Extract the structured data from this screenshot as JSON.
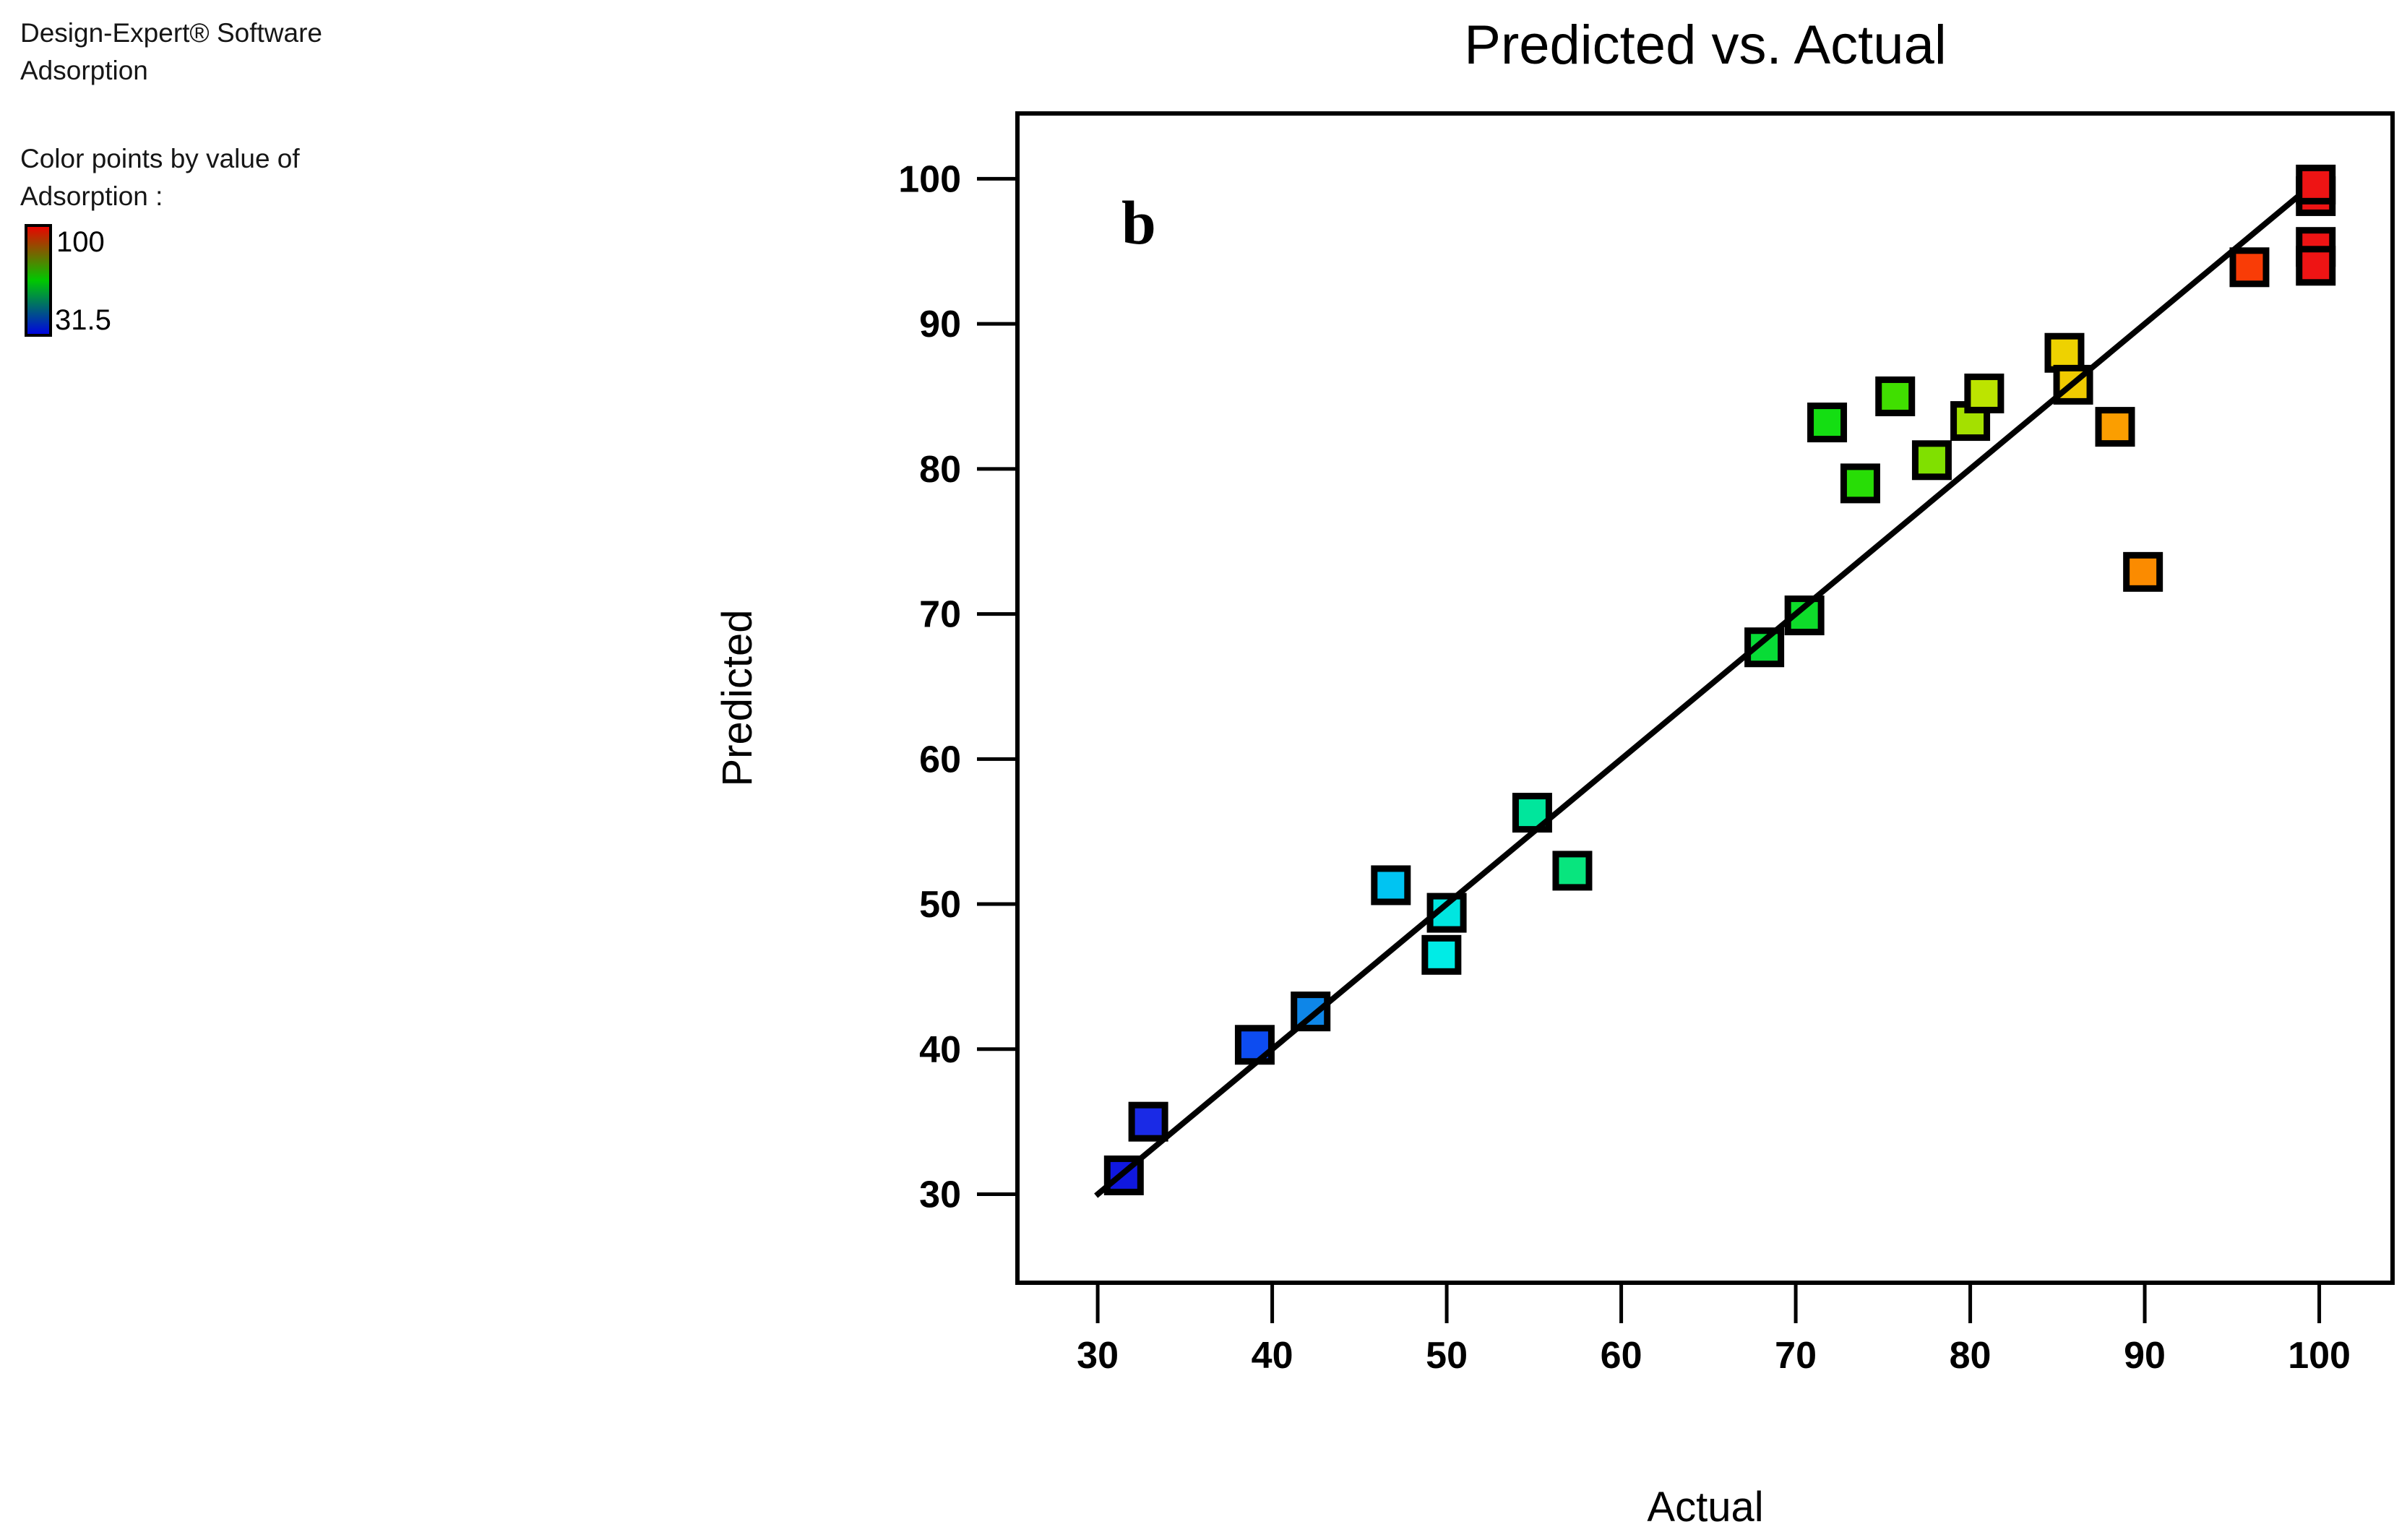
{
  "info_panel": {
    "software_line": "Design-Expert® Software",
    "response_name": "Adsorption",
    "color_note_line1": "Color points by value of",
    "color_note_line2": "Adsorption :",
    "colorbar": {
      "max_label": "100",
      "min_label": "31.5",
      "gradient_top": "#ee0000",
      "gradient_mid": "#00c800",
      "gradient_bottom": "#0000e6",
      "max_label_color": "#fa0000",
      "min_label_color": "#2424fa"
    }
  },
  "chart_data": {
    "type": "scatter",
    "title": "Predicted vs. Actual",
    "panel_label": "b",
    "xlabel": "Actual",
    "ylabel": "Predicted",
    "xlim": [
      25.4,
      104.2
    ],
    "ylim": [
      23.9,
      104.5
    ],
    "xticks": [
      30,
      40,
      50,
      60,
      70,
      80,
      90,
      100
    ],
    "yticks": [
      30,
      40,
      50,
      60,
      70,
      80,
      90,
      100
    ],
    "grid": false,
    "legend_note": "points colored by Adsorption value, 31.5 (blue) to 100 (red)",
    "identity_line": {
      "x1": 29.9,
      "y1": 29.9,
      "x2": 98.8,
      "y2": 98.8
    },
    "points": [
      {
        "x": 31.5,
        "y": 31.3,
        "color": "#1018e0"
      },
      {
        "x": 32.9,
        "y": 35.0,
        "color": "#1a2ae6"
      },
      {
        "x": 39.0,
        "y": 40.3,
        "color": "#0d4cf0"
      },
      {
        "x": 42.2,
        "y": 42.6,
        "color": "#0e86e8"
      },
      {
        "x": 46.8,
        "y": 51.3,
        "color": "#00c4f2"
      },
      {
        "x": 50.0,
        "y": 49.4,
        "color": "#00e6e0"
      },
      {
        "x": 49.7,
        "y": 46.5,
        "color": "#00ece6"
      },
      {
        "x": 54.9,
        "y": 56.3,
        "color": "#00e69c"
      },
      {
        "x": 57.2,
        "y": 52.3,
        "color": "#08e57e"
      },
      {
        "x": 68.2,
        "y": 67.7,
        "color": "#08dc36"
      },
      {
        "x": 70.5,
        "y": 69.9,
        "color": "#0edc2a"
      },
      {
        "x": 71.8,
        "y": 83.2,
        "color": "#14de12"
      },
      {
        "x": 73.7,
        "y": 79.0,
        "color": "#28dd06"
      },
      {
        "x": 75.7,
        "y": 85.0,
        "color": "#40df00"
      },
      {
        "x": 77.8,
        "y": 80.6,
        "color": "#80e000"
      },
      {
        "x": 80.0,
        "y": 83.3,
        "color": "#a4e000"
      },
      {
        "x": 80.8,
        "y": 85.2,
        "color": "#bce400"
      },
      {
        "x": 85.4,
        "y": 88.0,
        "color": "#eed200"
      },
      {
        "x": 85.9,
        "y": 85.8,
        "color": "#f0ca00"
      },
      {
        "x": 88.3,
        "y": 82.9,
        "color": "#fb9e00"
      },
      {
        "x": 89.9,
        "y": 72.9,
        "color": "#fb8b00"
      },
      {
        "x": 96.0,
        "y": 93.9,
        "color": "#f93c06"
      },
      {
        "x": 99.8,
        "y": 98.8,
        "color": "#ee1414"
      },
      {
        "x": 99.8,
        "y": 99.6,
        "color": "#ee1414"
      },
      {
        "x": 99.8,
        "y": 95.3,
        "color": "#ee1414"
      },
      {
        "x": 99.8,
        "y": 94.0,
        "color": "#ee1414"
      }
    ]
  }
}
